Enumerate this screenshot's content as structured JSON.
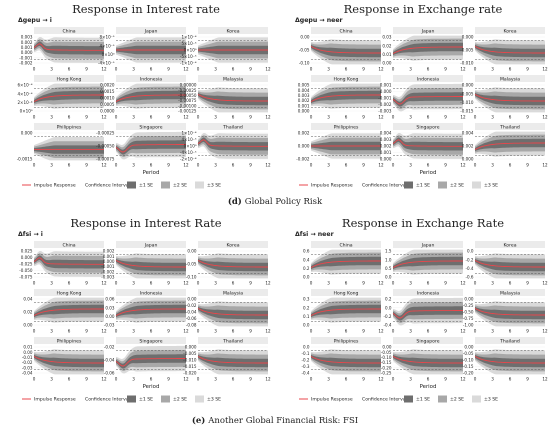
{
  "legend": {
    "impulse": "Impulse Response",
    "ci_title": "Confidence Interval",
    "se1": "±1 SE",
    "se2": "±2 SE",
    "se3": "±3 SE"
  },
  "colors": {
    "line": "#e8474c",
    "band1": "#6e6e6e",
    "band2": "#a8a8a8",
    "band3": "#dadada",
    "strip": "#ebebeb",
    "dash": "#555555",
    "text": "#222222"
  },
  "sections": [
    {
      "caption_letter": "(d)",
      "caption_text": "Global Policy Risk",
      "panels": [
        {
          "title": "Response in Interest rate",
          "subtitle_var": "Δgepu",
          "subtitle_to": "i",
          "xlabel": "Period",
          "grid": [
            {
              "country": "China",
              "yticks": [
                "0.003",
                "0.002",
                "0.001",
                "0.000",
                "-0.001",
                "-0.002"
              ],
              "shape": "rise_dip"
            },
            {
              "country": "Japan",
              "yticks": [
                "8×10⁻⁵",
                "4×10⁻⁵",
                "0×10⁰",
                "-4×10⁻⁵"
              ],
              "shape": "flat"
            },
            {
              "country": "Korea",
              "yticks": [
                "1×10⁻⁴",
                "5×10⁻⁵",
                "0×10⁰",
                "-5×10⁻⁵",
                "-1×10⁻⁴"
              ],
              "shape": "flat"
            },
            {
              "country": "Hong Kong",
              "yticks": [
                "6×10⁻⁴",
                "4×10⁻⁴",
                "2×10⁻⁴",
                "0×10⁰"
              ],
              "shape": "rise"
            },
            {
              "country": "Indonesia",
              "yticks": [
                "0.0020",
                "0.0015",
                "0.0010",
                "0.0005",
                "0.0000"
              ],
              "shape": "rise"
            },
            {
              "country": "Malaysia",
              "yticks": [
                "0.00000",
                "-0.00025",
                "-0.00050",
                "-0.00075",
                "-0.00100",
                "-0.00125"
              ],
              "shape": "fall"
            },
            {
              "country": "Philippines",
              "yticks": [
                "0.000",
                "-0.0015"
              ],
              "shape": "flat_low"
            },
            {
              "country": "Singapore",
              "yticks": [
                "-0.00025",
                "-0.00050",
                "-0.00075"
              ],
              "shape": "dip_recover"
            },
            {
              "country": "Thailand",
              "yticks": [
                "1×10⁻⁴",
                "4×10⁻⁵",
                "0×10⁰",
                "-4×10⁻⁵",
                "-2×10⁻⁴"
              ],
              "shape": "rise_dip"
            }
          ]
        },
        {
          "title": "Response in Exchange rate",
          "subtitle_var": "Δgepu",
          "subtitle_to": "neer",
          "xlabel": "Period",
          "grid": [
            {
              "country": "China",
              "yticks": [
                "0.00",
                "-0.05",
                "-0.10"
              ],
              "shape": "fall"
            },
            {
              "country": "Japan",
              "yticks": [
                "0.03",
                "0.02",
                "0.01",
                "0.00"
              ],
              "shape": "rise"
            },
            {
              "country": "Korea",
              "yticks": [
                "0.000",
                "-0.005",
                "-0.010"
              ],
              "shape": "fall"
            },
            {
              "country": "Hong Kong",
              "yticks": [
                "0.005",
                "0.004",
                "0.003",
                "0.002",
                "0.001",
                "0.000"
              ],
              "shape": "rise"
            },
            {
              "country": "Indonesia",
              "yticks": [
                "0.001",
                "0.000",
                "-0.001",
                "-0.002",
                "-0.003"
              ],
              "shape": "dip_recover"
            },
            {
              "country": "Malaysia",
              "yticks": [
                "0.000",
                "-0.005",
                "-0.010",
                "-0.015"
              ],
              "shape": "fall"
            },
            {
              "country": "Philippines",
              "yticks": [
                "0.002",
                "0.000",
                "-0.002"
              ],
              "shape": "flat"
            },
            {
              "country": "Singapore",
              "yticks": [
                "0.004",
                "0.003",
                "0.002",
                "0.001",
                "0.000"
              ],
              "shape": "rise_dip"
            },
            {
              "country": "Thailand",
              "yticks": [
                "0.004",
                "0.002",
                "0.000"
              ],
              "shape": "rise"
            }
          ]
        }
      ]
    },
    {
      "caption_letter": "(e)",
      "caption_text": "Another Global Financial Risk: FSI",
      "panels": [
        {
          "title": "Response in Interest Rate",
          "subtitle_var": "Δfsi",
          "subtitle_to": "i",
          "xlabel": "Period",
          "grid": [
            {
              "country": "China",
              "yticks": [
                "0.025",
                "0.000",
                "-0.025",
                "-0.050",
                "-0.075"
              ],
              "shape": "rise_dip"
            },
            {
              "country": "Japan",
              "yticks": [
                "0.002",
                "0.001",
                "0.000",
                "-0.001",
                "-0.002",
                "-0.003"
              ],
              "shape": "fall"
            },
            {
              "country": "Korea",
              "yticks": [
                "0.00",
                "-0.05",
                "-0.10"
              ],
              "shape": "fall"
            },
            {
              "country": "Hong Kong",
              "yticks": [
                "0.04",
                "0.02",
                "0.00"
              ],
              "shape": "rise"
            },
            {
              "country": "Indonesia",
              "yticks": [
                "0.06",
                "0.03",
                "0.00",
                "-0.03"
              ],
              "shape": "rise"
            },
            {
              "country": "Malaysia",
              "yticks": [
                "0.00",
                "-0.02",
                "-0.04",
                "-0.06",
                "-0.08"
              ],
              "shape": "fall"
            },
            {
              "country": "Philippines",
              "yticks": [
                "0.01",
                "0.00",
                "-0.01",
                "-0.02",
                "-0.03",
                "-0.04"
              ],
              "shape": "fall"
            },
            {
              "country": "Singapore",
              "yticks": [
                "-0.02",
                "-0.04",
                "-0.06"
              ],
              "shape": "dip_recover"
            },
            {
              "country": "Thailand",
              "yticks": [
                "0.000",
                "-0.005",
                "-0.010",
                "-0.015",
                "-0.020"
              ],
              "shape": "fall"
            }
          ]
        },
        {
          "title": "Response in Exchange Rate",
          "subtitle_var": "Δfsi",
          "subtitle_to": "neer",
          "xlabel": "Period",
          "grid": [
            {
              "country": "China",
              "yticks": [
                "0.6",
                "0.4",
                "0.2",
                "0.0"
              ],
              "shape": "rise"
            },
            {
              "country": "Japan",
              "yticks": [
                "1.5",
                "1.0",
                "0.5",
                "0.0"
              ],
              "shape": "rise"
            },
            {
              "country": "Korea",
              "yticks": [
                "0.0",
                "-0.2",
                "-0.4",
                "-0.6"
              ],
              "shape": "fall"
            },
            {
              "country": "Hong Kong",
              "yticks": [
                "0.3",
                "0.2",
                "0.1",
                "0.0"
              ],
              "shape": "rise"
            },
            {
              "country": "Indonesia",
              "yticks": [
                "0.2",
                "0.0",
                "-0.2",
                "-0.4"
              ],
              "shape": "dip_recover"
            },
            {
              "country": "Malaysia",
              "yticks": [
                "0.00",
                "-0.25",
                "-0.50",
                "-0.75",
                "-1.00"
              ],
              "shape": "fall"
            },
            {
              "country": "Philippines",
              "yticks": [
                "0.0",
                "-0.1",
                "-0.2",
                "-0.3",
                "-0.4"
              ],
              "shape": "fall"
            },
            {
              "country": "Singapore",
              "yticks": [
                "0.00",
                "-0.05",
                "-0.10",
                "-0.15",
                "-0.20",
                "-0.25"
              ],
              "shape": "fall"
            },
            {
              "country": "Thailand",
              "yticks": [
                "0.00",
                "-0.05",
                "-0.10",
                "-0.15",
                "-0.20"
              ],
              "shape": "fall"
            }
          ]
        }
      ]
    }
  ],
  "chart_data": {
    "type": "line",
    "x": [
      0,
      3,
      6,
      9,
      12
    ],
    "xticks": [
      "0",
      "3",
      "6",
      "9",
      "12"
    ],
    "note": ""
  }
}
